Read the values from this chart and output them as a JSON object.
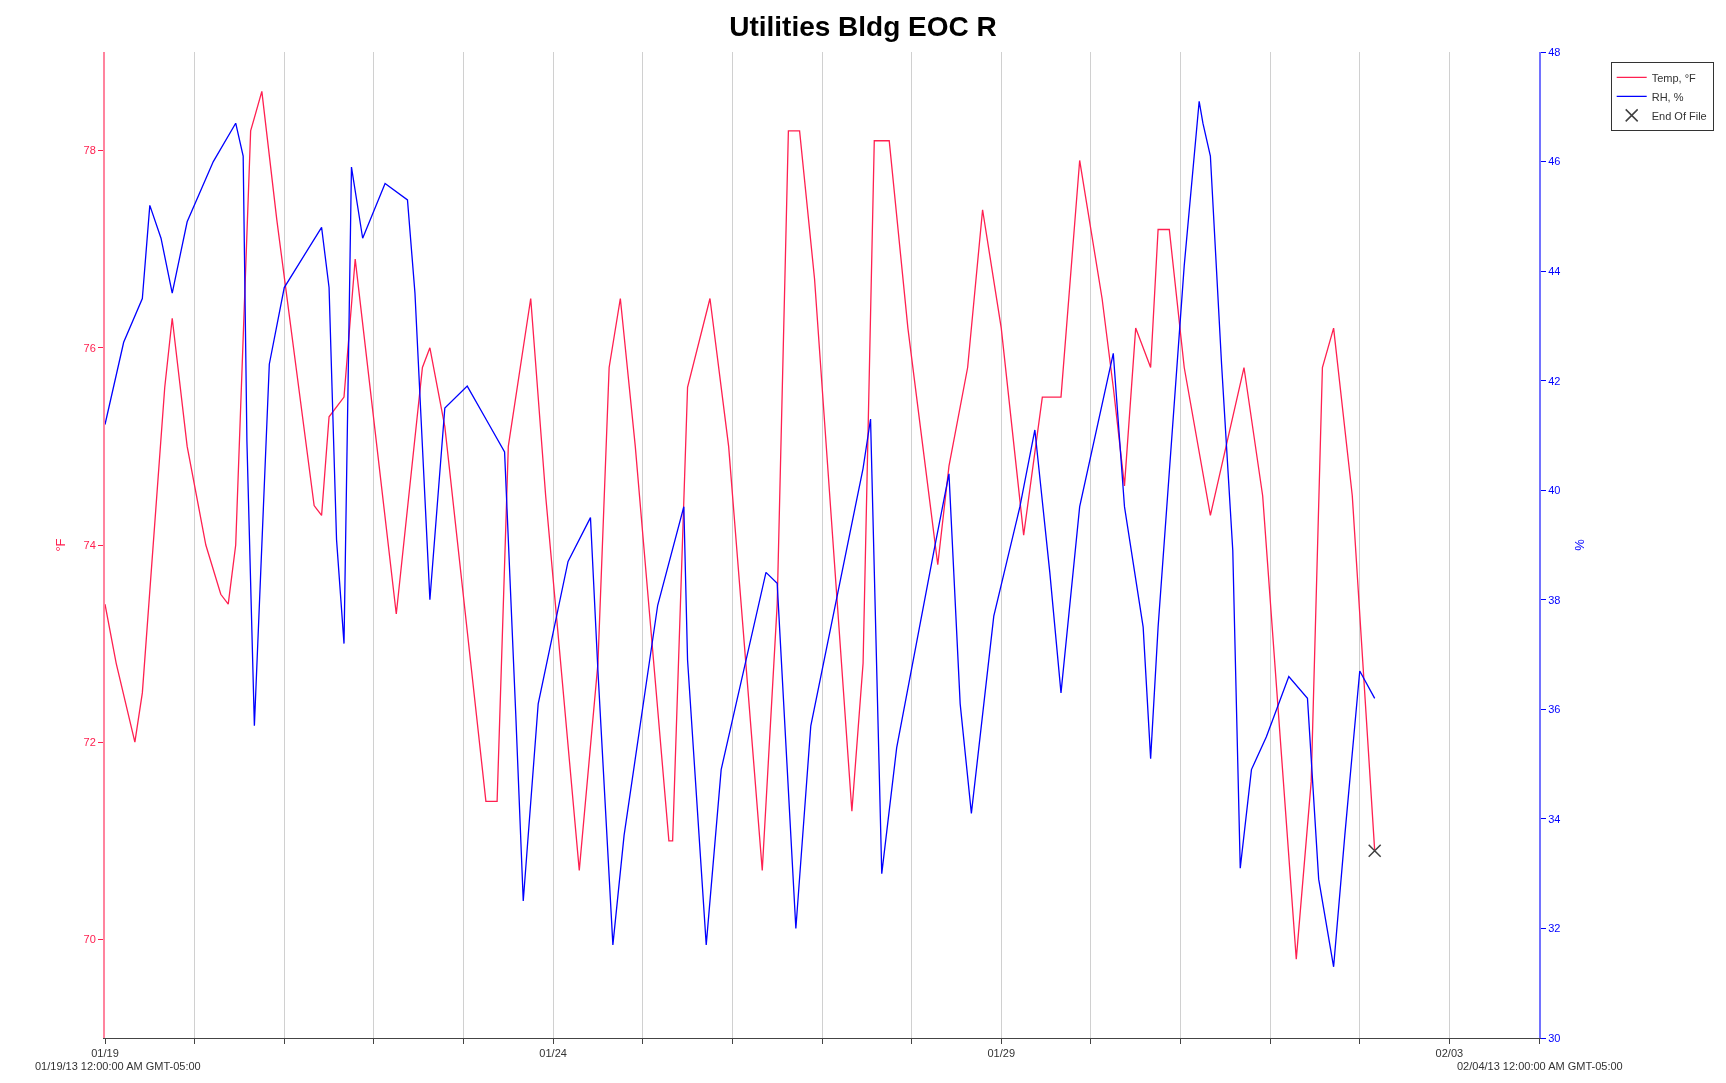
{
  "chart_data": {
    "type": "line",
    "title": "Utilities Bldg EOC R",
    "ylabel": "°F",
    "y2label": "%",
    "xlim": [
      "--01-19T00:00",
      "--02-04T00:00"
    ],
    "xticks": [
      {
        "value": "--01-19",
        "label": "01/19"
      },
      {
        "value": "--01-20",
        "label": null
      },
      {
        "value": "--01-21",
        "label": null
      },
      {
        "value": "--01-22",
        "label": null
      },
      {
        "value": "--01-23",
        "label": null
      },
      {
        "value": "--01-24",
        "label": "01/24"
      },
      {
        "value": "--01-25",
        "label": null
      },
      {
        "value": "--01-26",
        "label": null
      },
      {
        "value": "--01-27",
        "label": null
      },
      {
        "value": "--01-28",
        "label": null
      },
      {
        "value": "--01-29",
        "label": "01/29"
      },
      {
        "value": "--01-30",
        "label": null
      },
      {
        "value": "--01-31",
        "label": null
      },
      {
        "value": "--02-01",
        "label": null
      },
      {
        "value": "--02-02",
        "label": null
      },
      {
        "value": "--02-03",
        "label": "02/03"
      },
      {
        "value": "--02-04",
        "label": null
      }
    ],
    "ylim": [
      69,
      79
    ],
    "yticks": [
      70,
      72,
      74,
      76,
      78
    ],
    "y2lim": [
      30,
      48
    ],
    "y2ticks": [
      30,
      32,
      34,
      36,
      38,
      40,
      42,
      44,
      46,
      48
    ],
    "grid": "x",
    "legend": "top right",
    "line_style": "solid",
    "marker": "none",
    "annotations": [
      "01/19/13 12:00:00 AM GMT-05:00",
      "02/04/13 12:00:00 AM GMT-05:00"
    ],
    "series": [
      {
        "name": "Temp, °F",
        "color": "#ff2050",
        "x": [
          "--01-19T00:00",
          "--01-19T03:00",
          "--01-19T08:00",
          "--01-19T10:00",
          "--01-19T16:00",
          "--01-19T18:00",
          "--01-19T22:00",
          "--01-20T03:00",
          "--01-20T07:00",
          "--01-20T09:00",
          "--01-20T11:00",
          "--01-20T15:00",
          "--01-20T18:00",
          "--01-20T22:00",
          "--01-21T08:00",
          "--01-21T10:00",
          "--01-21T12:00",
          "--01-21T16:00",
          "--01-21T19:00",
          "--01-22T06:00",
          "--01-22T13:00",
          "--01-22T15:00",
          "--01-22T19:00",
          "--01-23T06:00",
          "--01-23T09:00",
          "--01-23T12:00",
          "--01-23T18:00",
          "--01-23T22:00",
          "--01-24T07:00",
          "--01-24T12:00",
          "--01-24T15:00",
          "--01-24T18:00",
          "--01-24T22:00",
          "--01-25T07:00",
          "--01-25T08:00",
          "--01-25T12:00",
          "--01-25T18:00",
          "--01-25T23:00",
          "--01-26T08:00",
          "--01-26T12:00",
          "--01-26T15:00",
          "--01-26T18:00",
          "--01-26T22:00",
          "--01-27T08:00",
          "--01-27T11:00",
          "--01-27T14:00",
          "--01-27T18:00",
          "--01-27T23:00",
          "--01-28T07:00",
          "--01-28T10:00",
          "--01-28T15:00",
          "--01-28T19:00",
          "--01-29T00:00",
          "--01-29T06:00",
          "--01-29T11:00",
          "--01-29T16:00",
          "--01-29T21:00",
          "--01-30T03:00",
          "--01-30T06:00",
          "--01-30T09:00",
          "--01-30T12:00",
          "--01-30T16:00",
          "--01-30T18:00",
          "--01-30T21:00",
          "--01-31T01:00",
          "--01-31T08:00",
          "--01-31T14:00",
          "--01-31T17:00",
          "--01-31T22:00",
          "--02-01T07:00",
          "--02-01T11:00",
          "--02-01T14:00",
          "--02-01T17:00",
          "--02-01T22:00",
          "--02-02T04:00"
        ],
        "values": [
          73.4,
          72.8,
          72.0,
          72.5,
          75.6,
          76.3,
          75.0,
          74.0,
          73.5,
          73.4,
          74.0,
          78.2,
          78.6,
          77.3,
          74.4,
          74.3,
          75.3,
          75.5,
          76.9,
          73.3,
          75.8,
          76.0,
          75.2,
          71.4,
          71.4,
          75.0,
          76.5,
          74.5,
          70.7,
          72.8,
          75.8,
          76.5,
          75.0,
          71.0,
          71.0,
          75.6,
          76.5,
          75.0,
          70.7,
          73.4,
          78.2,
          78.2,
          76.7,
          71.3,
          72.8,
          78.1,
          78.1,
          76.2,
          73.8,
          74.8,
          75.8,
          77.4,
          76.2,
          74.1,
          75.5,
          75.5,
          77.9,
          76.5,
          75.6,
          74.6,
          76.2,
          75.8,
          77.2,
          77.2,
          75.8,
          74.3,
          75.3,
          75.8,
          74.5,
          69.8,
          71.6,
          75.8,
          76.2,
          74.5,
          70.9
        ]
      },
      {
        "name": "RH, %",
        "color": "#0000ff",
        "axis": "y2",
        "x": [
          "--01-19T00:00",
          "--01-19T05:00",
          "--01-19T10:00",
          "--01-19T12:00",
          "--01-19T15:00",
          "--01-19T18:00",
          "--01-19T22:00",
          "--01-20T05:00",
          "--01-20T11:00",
          "--01-20T13:00",
          "--01-20T14:00",
          "--01-20T16:00",
          "--01-20T20:00",
          "--01-21T00:00",
          "--01-21T10:00",
          "--01-21T12:00",
          "--01-21T14:00",
          "--01-21T16:00",
          "--01-21T18:00",
          "--01-21T21:00",
          "--01-22T03:00",
          "--01-22T09:00",
          "--01-22T11:00",
          "--01-22T15:00",
          "--01-22T19:00",
          "--01-23T01:00",
          "--01-23T06:00",
          "--01-23T11:00",
          "--01-23T14:00",
          "--01-23T16:00",
          "--01-23T20:00",
          "--01-24T04:00",
          "--01-24T10:00",
          "--01-24T12:00",
          "--01-24T16:00",
          "--01-24T19:00",
          "--01-25T04:00",
          "--01-25T11:00",
          "--01-25T12:00",
          "--01-25T17:00",
          "--01-25T21:00",
          "--01-26T09:00",
          "--01-26T12:00",
          "--01-26T17:00",
          "--01-26T21:00",
          "--01-27T11:00",
          "--01-27T13:00",
          "--01-27T16:00",
          "--01-27T20:00",
          "--01-28T06:00",
          "--01-28T10:00",
          "--01-28T13:00",
          "--01-28T16:00",
          "--01-28T22:00",
          "--01-29T05:00",
          "--01-29T09:00",
          "--01-29T13:00",
          "--01-29T16:00",
          "--01-29T21:00",
          "--01-30T06:00",
          "--01-30T09:00",
          "--01-30T14:00",
          "--01-30T16:00",
          "--01-30T18:00",
          "--01-31T01:00",
          "--01-31T05:00",
          "--01-31T06:00",
          "--01-31T08:00",
          "--01-31T11:00",
          "--01-31T14:00",
          "--01-31T16:00",
          "--01-31T19:00",
          "--01-31T23:00",
          "--02-01T05:00",
          "--02-01T10:00",
          "--02-01T13:00",
          "--02-01T17:00",
          "--02-01T20:00",
          "--02-02T00:00",
          "--02-02T04:00"
        ],
        "values": [
          41.2,
          42.7,
          43.5,
          45.2,
          44.6,
          43.6,
          44.9,
          46.0,
          46.7,
          46.1,
          40.9,
          35.7,
          42.3,
          43.7,
          44.8,
          43.7,
          39.1,
          37.2,
          45.9,
          44.6,
          45.6,
          45.3,
          43.6,
          38.0,
          41.5,
          41.9,
          41.3,
          40.7,
          35.9,
          32.5,
          36.1,
          38.7,
          39.5,
          36.7,
          31.7,
          33.7,
          37.9,
          39.7,
          36.9,
          31.7,
          34.9,
          38.5,
          38.3,
          32.0,
          35.7,
          40.4,
          41.3,
          33.0,
          35.3,
          38.9,
          40.3,
          36.1,
          34.1,
          37.7,
          39.7,
          41.1,
          38.5,
          36.3,
          39.7,
          42.5,
          39.7,
          37.5,
          35.1,
          37.5,
          44.1,
          47.1,
          46.7,
          46.1,
          42.3,
          38.9,
          33.1,
          34.9,
          35.5,
          36.6,
          36.2,
          32.9,
          31.3,
          33.7,
          36.7,
          36.2
        ]
      },
      {
        "name": "End Of File",
        "type": "scatter",
        "marker": "cross",
        "color": "#404040",
        "x": [
          "--02-02T04:00"
        ],
        "values": [
          70.9
        ]
      }
    ]
  }
}
